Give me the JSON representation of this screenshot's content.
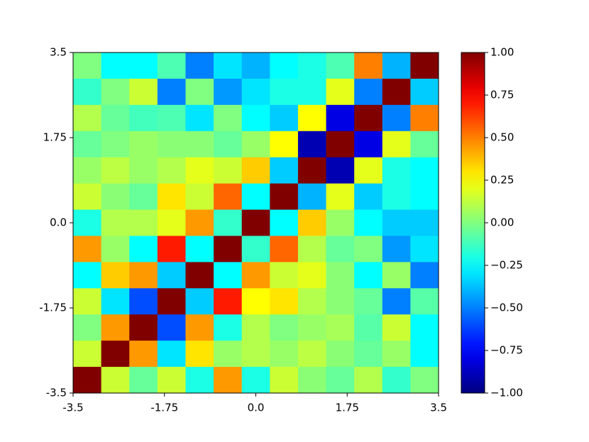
{
  "chart_data": {
    "type": "heatmap",
    "colormap": "jet",
    "z": [
      [
        0,
        -0.25,
        -0.25,
        -0.1,
        -0.5,
        -0.3,
        -0.4,
        -0.25,
        -0.2,
        -0.1,
        0.5,
        -0.4,
        1
      ],
      [
        -0.15,
        0,
        0.15,
        -0.5,
        0,
        -0.45,
        -0.3,
        -0.2,
        -0.2,
        0.2,
        -0.5,
        1,
        -0.35
      ],
      [
        0.1,
        -0.05,
        -0.12,
        -0.1,
        -0.3,
        0,
        -0.25,
        -0.35,
        0.25,
        -0.8,
        1,
        -0.5,
        0.5
      ],
      [
        -0.05,
        0,
        0.05,
        0.02,
        0.02,
        -0.05,
        0.05,
        0.25,
        -0.9,
        1,
        -0.8,
        0.2,
        -0.05
      ],
      [
        0.05,
        0.12,
        0.05,
        0.1,
        0.2,
        0.15,
        0.35,
        -0.35,
        1,
        -0.9,
        0.2,
        -0.2,
        -0.25
      ],
      [
        0.15,
        0.02,
        -0.05,
        0.3,
        0.15,
        0.55,
        -0.25,
        1,
        -0.4,
        0.2,
        -0.35,
        -0.2,
        -0.25
      ],
      [
        -0.2,
        0.1,
        0.1,
        0.2,
        0.45,
        -0.15,
        1,
        -0.25,
        0.35,
        0.05,
        -0.25,
        -0.35,
        -0.35
      ],
      [
        0.45,
        0.05,
        -0.25,
        0.7,
        -0.25,
        1,
        -0.15,
        0.55,
        0.1,
        -0.05,
        0,
        -0.45,
        -0.3
      ],
      [
        -0.25,
        0.35,
        0.45,
        -0.35,
        1,
        -0.25,
        0.45,
        0.15,
        0.2,
        0.02,
        -0.25,
        0.05,
        -0.5
      ],
      [
        0.15,
        -0.3,
        -0.6,
        1,
        -0.35,
        0.7,
        0.25,
        0.3,
        0.1,
        0.02,
        -0.05,
        -0.5,
        -0.08
      ],
      [
        0,
        0.45,
        1,
        -0.6,
        0.45,
        -0.2,
        0.1,
        0,
        0.05,
        0.08,
        -0.08,
        0.15,
        -0.25
      ],
      [
        0.15,
        1,
        0.45,
        -0.3,
        0.3,
        0.05,
        0.1,
        0.05,
        0.12,
        0.02,
        -0.05,
        0.05,
        -0.25
      ],
      [
        1,
        0.15,
        -0.05,
        0.15,
        -0.2,
        0.45,
        -0.2,
        0.15,
        0.02,
        -0.05,
        0.1,
        -0.15,
        0
      ]
    ],
    "xlim": [
      -3.5,
      3.5
    ],
    "ylim": [
      -3.5,
      3.5
    ],
    "xticks": [
      -3.5,
      -1.75,
      {
        "value": 0,
        "label": "0.0"
      },
      1.75,
      3.5
    ],
    "yticks": [
      -3.5,
      -1.75,
      {
        "value": 0,
        "label": "0.0"
      },
      1.75,
      3.5
    ],
    "zlim": [
      -1,
      1
    ],
    "cticks": [
      {
        "value": -1,
        "label": "−1.00"
      },
      {
        "value": -0.75,
        "label": "−0.75"
      },
      {
        "value": -0.5,
        "label": "−0.50"
      },
      {
        "value": -0.25,
        "label": "−0.25"
      },
      {
        "value": 0,
        "label": "0.00"
      },
      0.25,
      {
        "value": 0.5,
        "label": "0.50"
      },
      0.75,
      {
        "value": 1,
        "label": "1.00"
      }
    ]
  }
}
